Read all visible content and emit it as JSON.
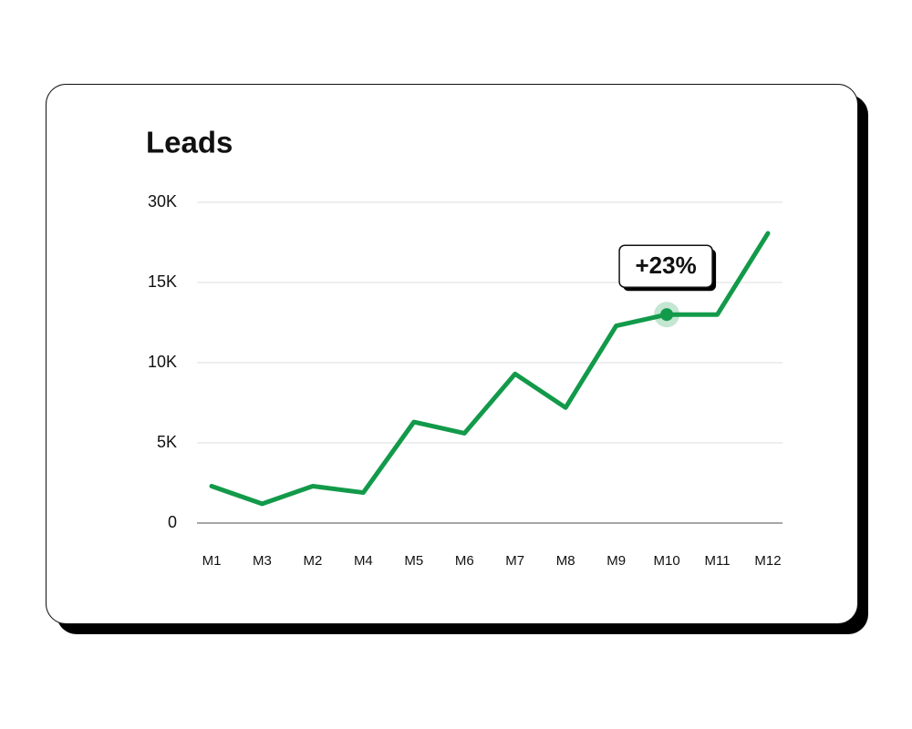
{
  "chart_data": {
    "type": "line",
    "title": "Leads",
    "categories": [
      "M1",
      "M3",
      "M2",
      "M4",
      "M5",
      "M6",
      "M7",
      "M8",
      "M9",
      "M10",
      "M11",
      "M12"
    ],
    "series": [
      {
        "name": "Leads",
        "color": "#129a4a",
        "values": [
          2300,
          1200,
          2300,
          1900,
          6300,
          5600,
          9300,
          7200,
          12300,
          13000,
          13000,
          24200
        ]
      }
    ],
    "ylim": [
      0,
      30000
    ],
    "yticks": [
      {
        "value": 0,
        "label": "0"
      },
      {
        "value": 5000,
        "label": "5K"
      },
      {
        "value": 10000,
        "label": "10K"
      },
      {
        "value": 15000,
        "label": "15K"
      },
      {
        "value": 30000,
        "label": "30K"
      }
    ],
    "grid": true,
    "annotation": {
      "text": "+23%",
      "category": "M10"
    }
  }
}
